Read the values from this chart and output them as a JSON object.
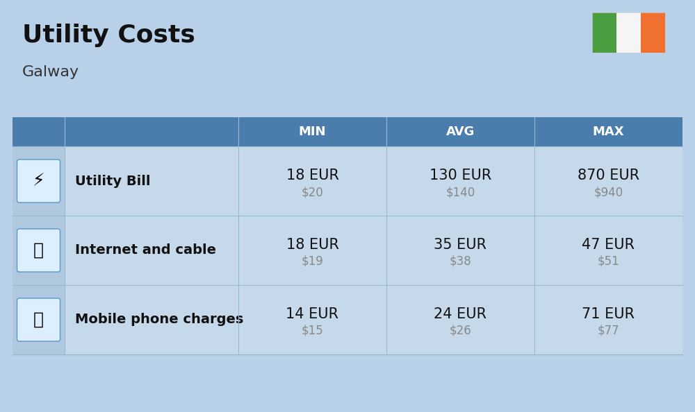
{
  "title": "Utility Costs",
  "subtitle": "Galway",
  "background_color": "#b8d0e8",
  "header_bg_color": "#4a7cac",
  "header_text_color": "#ffffff",
  "row_bg_color": "#c5d9ea",
  "icon_col_color": "#b0c8de",
  "divider_color": "#9ab8d0",
  "columns": [
    "",
    "",
    "MIN",
    "AVG",
    "MAX"
  ],
  "rows": [
    {
      "label": "Utility Bill",
      "min_eur": "18 EUR",
      "min_usd": "$20",
      "avg_eur": "130 EUR",
      "avg_usd": "$140",
      "max_eur": "870 EUR",
      "max_usd": "$940"
    },
    {
      "label": "Internet and cable",
      "min_eur": "18 EUR",
      "min_usd": "$19",
      "avg_eur": "35 EUR",
      "avg_usd": "$38",
      "max_eur": "47 EUR",
      "max_usd": "$51"
    },
    {
      "label": "Mobile phone charges",
      "min_eur": "14 EUR",
      "min_usd": "$15",
      "avg_eur": "24 EUR",
      "avg_usd": "$26",
      "max_eur": "71 EUR",
      "max_usd": "$77"
    }
  ],
  "flag_colors": [
    "#4a9e3f",
    "#f5f5f5",
    "#f07030"
  ],
  "title_fontsize": 26,
  "subtitle_fontsize": 16,
  "header_fontsize": 13,
  "cell_eur_fontsize": 15,
  "cell_usd_fontsize": 12,
  "label_fontsize": 14
}
